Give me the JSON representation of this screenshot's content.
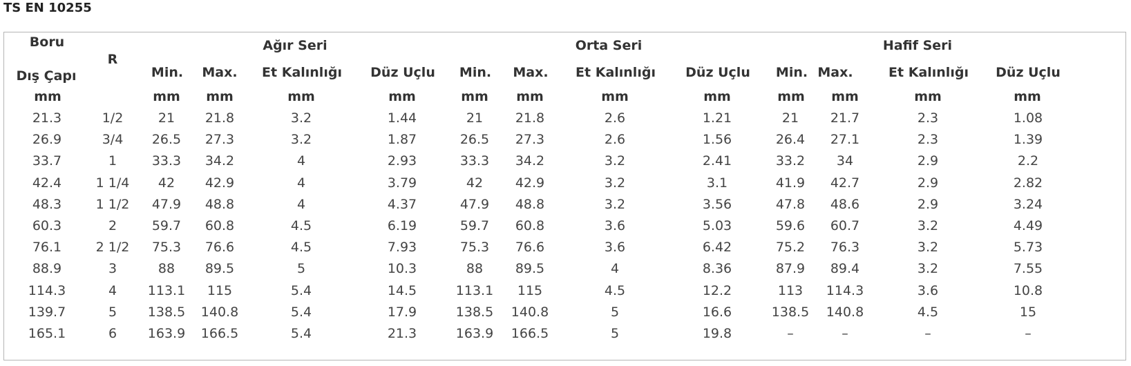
{
  "title": "TS EN 10255",
  "groups": [
    "Ağır Seri",
    "Orta Seri",
    "Hafif Seri"
  ],
  "headers": {
    "boru": "Boru",
    "dis_capi": "Dış Çapı",
    "r": "R",
    "mm": "mm",
    "min": "Min.",
    "max": "Max.",
    "et": "Et Kalınlığı",
    "duz": "Düz Uçlu"
  },
  "rows": [
    [
      "21.3",
      "1/2",
      "21",
      "21.8",
      "3.2",
      "1.44",
      "21",
      "21.8",
      "2.6",
      "1.21",
      "21",
      "21.7",
      "2.3",
      "1.08"
    ],
    [
      "26.9",
      "3/4",
      "26.5",
      "27.3",
      "3.2",
      "1.87",
      "26.5",
      "27.3",
      "2.6",
      "1.56",
      "26.4",
      "27.1",
      "2.3",
      "1.39"
    ],
    [
      "33.7",
      "1",
      "33.3",
      "34.2",
      "4",
      "2.93",
      "33.3",
      "34.2",
      "3.2",
      "2.41",
      "33.2",
      "34",
      "2.9",
      "2.2"
    ],
    [
      "42.4",
      "1 1/4",
      "42",
      "42.9",
      "4",
      "3.79",
      "42",
      "42.9",
      "3.2",
      "3.1",
      "41.9",
      "42.7",
      "2.9",
      "2.82"
    ],
    [
      "48.3",
      "1 1/2",
      "47.9",
      "48.8",
      "4",
      "4.37",
      "47.9",
      "48.8",
      "3.2",
      "3.56",
      "47.8",
      "48.6",
      "2.9",
      "3.24"
    ],
    [
      "60.3",
      "2",
      "59.7",
      "60.8",
      "4.5",
      "6.19",
      "59.7",
      "60.8",
      "3.6",
      "5.03",
      "59.6",
      "60.7",
      "3.2",
      "4.49"
    ],
    [
      "76.1",
      "2 1/2",
      "75.3",
      "76.6",
      "4.5",
      "7.93",
      "75.3",
      "76.6",
      "3.6",
      "6.42",
      "75.2",
      "76.3",
      "3.2",
      "5.73"
    ],
    [
      "88.9",
      "3",
      "88",
      "89.5",
      "5",
      "10.3",
      "88",
      "89.5",
      "4",
      "8.36",
      "87.9",
      "89.4",
      "3.2",
      "7.55"
    ],
    [
      "114.3",
      "4",
      "113.1",
      "115",
      "5.4",
      "14.5",
      "113.1",
      "115",
      "4.5",
      "12.2",
      "113",
      "114.3",
      "3.6",
      "10.8"
    ],
    [
      "139.7",
      "5",
      "138.5",
      "140.8",
      "5.4",
      "17.9",
      "138.5",
      "140.8",
      "5",
      "16.6",
      "138.5",
      "140.8",
      "4.5",
      "15"
    ],
    [
      "165.1",
      "6",
      "163.9",
      "166.5",
      "5.4",
      "21.3",
      "163.9",
      "166.5",
      "5",
      "19.8",
      "–",
      "–",
      "–",
      "–"
    ]
  ]
}
